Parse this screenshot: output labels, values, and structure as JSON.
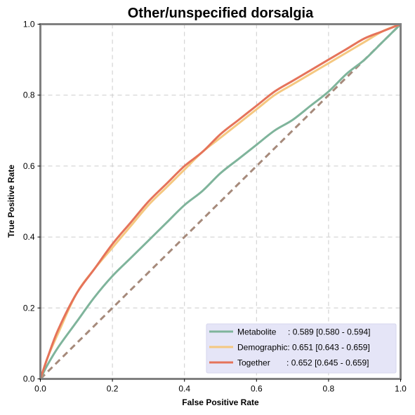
{
  "chart_data": {
    "type": "line",
    "title": "Other/unspecified dorsalgia",
    "xlabel": "False Positive Rate",
    "ylabel": "True Positive Rate",
    "xlim": [
      0,
      1
    ],
    "ylim": [
      0,
      1
    ],
    "x_ticks": [
      "0.0",
      "0.2",
      "0.4",
      "0.6",
      "0.8",
      "1.0"
    ],
    "y_ticks": [
      "0.0",
      "0.2",
      "0.4",
      "0.6",
      "0.8",
      "1.0"
    ],
    "grid": true,
    "legend_position": "bottom-right",
    "chance_line": {
      "x": [
        0,
        1
      ],
      "y": [
        0,
        1
      ],
      "color": "#a68a7b"
    },
    "series": [
      {
        "name": "Metabolite",
        "label": "Metabolite     : 0.589 [0.580 - 0.594]",
        "color": "#7fb49b",
        "x": [
          0,
          0.02,
          0.05,
          0.1,
          0.15,
          0.2,
          0.25,
          0.3,
          0.35,
          0.4,
          0.45,
          0.5,
          0.55,
          0.6,
          0.65,
          0.7,
          0.75,
          0.8,
          0.85,
          0.9,
          0.95,
          1.0
        ],
        "y": [
          0,
          0.04,
          0.09,
          0.16,
          0.23,
          0.29,
          0.34,
          0.39,
          0.44,
          0.49,
          0.53,
          0.58,
          0.62,
          0.66,
          0.7,
          0.73,
          0.77,
          0.81,
          0.86,
          0.9,
          0.95,
          1.0
        ]
      },
      {
        "name": "Demographic",
        "label": "Demographic: 0.651 [0.643 - 0.659]",
        "color": "#f5c880",
        "x": [
          0,
          0.02,
          0.05,
          0.1,
          0.15,
          0.2,
          0.25,
          0.3,
          0.35,
          0.4,
          0.45,
          0.5,
          0.55,
          0.6,
          0.65,
          0.7,
          0.75,
          0.8,
          0.85,
          0.9,
          0.95,
          1.0
        ],
        "y": [
          0,
          0.06,
          0.13,
          0.24,
          0.31,
          0.37,
          0.43,
          0.49,
          0.54,
          0.59,
          0.64,
          0.68,
          0.72,
          0.76,
          0.8,
          0.83,
          0.86,
          0.89,
          0.92,
          0.95,
          0.98,
          1.0
        ]
      },
      {
        "name": "Together",
        "label": "Together       : 0.652 [0.645 - 0.659]",
        "color": "#e5735a",
        "x": [
          0,
          0.02,
          0.05,
          0.1,
          0.15,
          0.2,
          0.25,
          0.3,
          0.35,
          0.4,
          0.45,
          0.5,
          0.55,
          0.6,
          0.65,
          0.7,
          0.75,
          0.8,
          0.85,
          0.9,
          0.95,
          1.0
        ],
        "y": [
          0,
          0.06,
          0.14,
          0.24,
          0.31,
          0.38,
          0.44,
          0.5,
          0.55,
          0.6,
          0.64,
          0.69,
          0.73,
          0.77,
          0.81,
          0.84,
          0.87,
          0.9,
          0.93,
          0.96,
          0.98,
          1.0
        ]
      }
    ]
  }
}
